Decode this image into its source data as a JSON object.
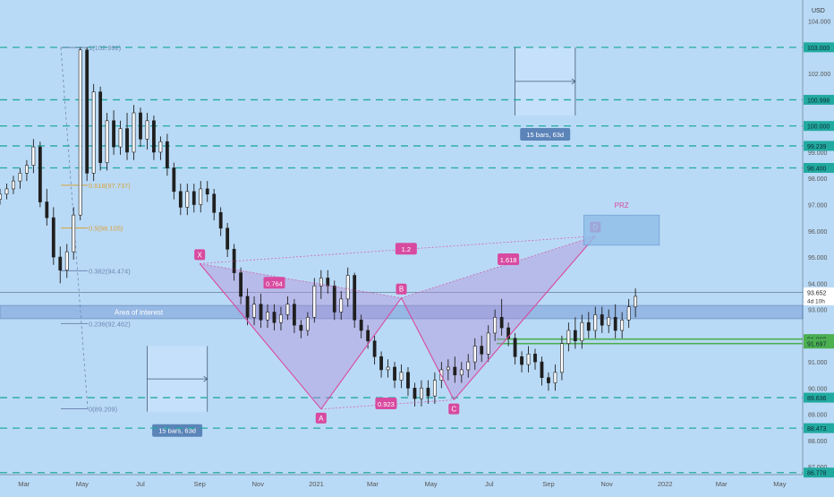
{
  "chart_data": {
    "type": "candlestick",
    "currency": "USD",
    "y_axis": {
      "ticks": [
        104.0,
        103.0,
        102.0,
        101.0,
        100.0,
        99.0,
        98.0,
        97.0,
        96.0,
        95.0,
        94.0,
        93.0,
        92.0,
        91.0,
        90.0,
        89.0,
        88.0,
        87.0
      ],
      "range": [
        86.7,
        104.6
      ]
    },
    "x_axis": {
      "labels": [
        "Mar",
        "May",
        "Jul",
        "Sep",
        "Nov",
        "2021",
        "Mar",
        "May",
        "Jul",
        "Sep",
        "Nov",
        "2022",
        "Mar",
        "May"
      ],
      "range": [
        "2020-02-05",
        "2022-05-25"
      ]
    },
    "price_levels": [
      {
        "value": 103.0,
        "label": "103.000"
      },
      {
        "value": 100.998,
        "label": "100.998"
      },
      {
        "value": 100.0,
        "label": "100.000"
      },
      {
        "value": 99.239,
        "label": "99.239"
      },
      {
        "value": 98.4,
        "label": "98.400"
      },
      {
        "value": 89.636,
        "label": "89.636"
      },
      {
        "value": 88.473,
        "label": "88.473"
      },
      {
        "value": 86.778,
        "label": "86.778"
      }
    ],
    "green_levels": [
      {
        "value": 91.869,
        "label": "91.869"
      },
      {
        "value": 91.697,
        "label": "91.697"
      }
    ],
    "current_price": {
      "value": 93.652,
      "label": "93.652",
      "countdown": "4d 10h"
    },
    "fibonacci": [
      {
        "ratio": "1",
        "value": 102.992,
        "label": "1(102.992)"
      },
      {
        "ratio": "0.618",
        "value": 97.737,
        "label": "0.618(97.737)"
      },
      {
        "ratio": "0.5",
        "value": 96.105,
        "label": "0.5(96.105)"
      },
      {
        "ratio": "0.382",
        "value": 94.474,
        "label": "0.382(94.474)"
      },
      {
        "ratio": "0.236",
        "value": 92.462,
        "label": "0.236(92.462)"
      },
      {
        "ratio": "0",
        "value": 89.209,
        "label": "0(89.209)"
      }
    ],
    "area_of_interest": {
      "label": "Area of interest",
      "from": 93.15,
      "to": 92.65
    },
    "harmonic_pattern": {
      "points": [
        {
          "label": "X",
          "date": "2020-09-01",
          "value": 94.75
        },
        {
          "label": "A",
          "date": "2021-01-06",
          "value": 89.2
        },
        {
          "label": "B",
          "date": "2021-03-31",
          "value": 93.44
        },
        {
          "label": "C",
          "date": "2021-05-25",
          "value": 89.55
        },
        {
          "label": "D",
          "date": "2021-10-20",
          "value": 95.8
        }
      ],
      "ratios": [
        {
          "label": "0.764",
          "date": "2020-11-18",
          "value": 94.0
        },
        {
          "label": "1.2",
          "date": "2021-04-05",
          "value": 95.3
        },
        {
          "label": "0.923",
          "date": "2021-03-15",
          "value": 89.4
        },
        {
          "label": "1.618",
          "date": "2021-07-21",
          "value": 94.9
        }
      ],
      "prz": {
        "label": "PRZ",
        "date_from": "2021-10-08",
        "date_to": "2021-12-26",
        "value_from": 96.6,
        "value_to": 95.45
      }
    },
    "time_ranges": [
      {
        "label": "15 bars, 63d",
        "date_from": "2020-07-08",
        "date_to": "2020-09-09",
        "value_from": 91.6,
        "value_to": 89.1
      },
      {
        "label": "15 bars, 63d",
        "date_from": "2021-07-28",
        "date_to": "2021-09-29",
        "value_from": 103.0,
        "value_to": 100.4
      }
    ],
    "weekly_ohlc": [
      [
        "2020-02-05",
        97.2,
        97.6,
        97.0,
        97.4
      ],
      [
        "2020-02-12",
        97.4,
        97.8,
        97.2,
        97.6
      ],
      [
        "2020-02-19",
        97.6,
        98.1,
        97.4,
        97.9
      ],
      [
        "2020-02-26",
        97.9,
        98.4,
        97.6,
        98.2
      ],
      [
        "2020-03-04",
        98.2,
        98.7,
        97.9,
        98.5
      ],
      [
        "2020-03-11",
        98.5,
        99.5,
        98.2,
        99.2
      ],
      [
        "2020-03-18",
        99.2,
        99.4,
        96.9,
        97.1
      ],
      [
        "2020-03-25",
        97.1,
        97.6,
        96.2,
        96.5
      ],
      [
        "2020-04-01",
        96.5,
        96.9,
        94.7,
        95.0
      ],
      [
        "2020-04-08",
        95.0,
        95.4,
        94.0,
        94.5
      ],
      [
        "2020-04-15",
        94.5,
        95.5,
        94.2,
        95.2
      ],
      [
        "2020-04-22",
        95.2,
        96.9,
        94.9,
        96.6
      ],
      [
        "2020-04-29",
        96.6,
        103.0,
        96.4,
        102.9
      ],
      [
        "2020-05-06",
        102.9,
        103.0,
        97.9,
        98.2
      ],
      [
        "2020-05-13",
        98.2,
        101.6,
        97.9,
        101.3
      ],
      [
        "2020-05-20",
        101.3,
        101.5,
        98.3,
        98.6
      ],
      [
        "2020-05-27",
        98.6,
        100.5,
        98.3,
        100.2
      ],
      [
        "2020-06-03",
        100.2,
        100.6,
        98.9,
        99.2
      ],
      [
        "2020-06-10",
        99.2,
        100.2,
        98.9,
        99.9
      ],
      [
        "2020-06-17",
        99.9,
        100.5,
        98.7,
        99.0
      ],
      [
        "2020-06-24",
        99.0,
        100.8,
        98.7,
        100.5
      ],
      [
        "2020-07-01",
        100.5,
        100.7,
        99.2,
        99.5
      ],
      [
        "2020-07-08",
        99.5,
        100.5,
        99.1,
        100.2
      ],
      [
        "2020-07-15",
        100.2,
        100.4,
        98.7,
        99.0
      ],
      [
        "2020-07-22",
        99.0,
        99.6,
        98.7,
        99.4
      ],
      [
        "2020-07-29",
        99.4,
        99.7,
        98.1,
        98.4
      ],
      [
        "2020-08-05",
        98.4,
        98.6,
        97.2,
        97.5
      ],
      [
        "2020-08-12",
        97.5,
        97.8,
        96.6,
        96.9
      ],
      [
        "2020-08-19",
        96.9,
        97.8,
        96.6,
        97.5
      ],
      [
        "2020-08-26",
        97.5,
        97.8,
        96.7,
        97.0
      ],
      [
        "2020-09-02",
        97.0,
        97.9,
        96.7,
        97.6
      ],
      [
        "2020-09-09",
        97.6,
        97.9,
        97.1,
        97.4
      ],
      [
        "2020-09-16",
        97.4,
        97.6,
        96.4,
        96.7
      ],
      [
        "2020-09-23",
        96.7,
        96.9,
        95.8,
        96.1
      ],
      [
        "2020-09-30",
        96.1,
        96.3,
        95.0,
        95.3
      ],
      [
        "2020-10-07",
        95.3,
        95.5,
        94.1,
        94.4
      ],
      [
        "2020-10-14",
        94.4,
        94.6,
        93.2,
        93.5
      ],
      [
        "2020-10-21",
        93.5,
        93.8,
        92.4,
        92.7
      ],
      [
        "2020-10-28",
        92.7,
        93.5,
        92.4,
        93.2
      ],
      [
        "2020-11-04",
        93.2,
        93.6,
        92.3,
        92.6
      ],
      [
        "2020-11-11",
        92.6,
        93.2,
        92.3,
        92.9
      ],
      [
        "2020-11-18",
        92.9,
        93.2,
        92.2,
        92.5
      ],
      [
        "2020-11-25",
        92.5,
        93.1,
        92.2,
        92.8
      ],
      [
        "2020-12-02",
        92.8,
        93.5,
        92.6,
        93.2
      ],
      [
        "2020-12-09",
        93.2,
        93.4,
        92.1,
        92.4
      ],
      [
        "2020-12-16",
        92.4,
        92.6,
        91.9,
        92.2
      ],
      [
        "2020-12-23",
        92.2,
        92.9,
        92.0,
        92.7
      ],
      [
        "2020-12-30",
        92.7,
        94.2,
        92.5,
        93.9
      ],
      [
        "2021-01-06",
        93.9,
        94.5,
        93.4,
        94.2
      ],
      [
        "2021-01-13",
        94.2,
        94.5,
        93.6,
        93.9
      ],
      [
        "2021-01-20",
        93.9,
        94.1,
        92.6,
        92.9
      ],
      [
        "2021-01-27",
        92.9,
        93.7,
        92.6,
        93.4
      ],
      [
        "2021-02-03",
        93.4,
        94.6,
        93.1,
        94.3
      ],
      [
        "2021-02-10",
        94.3,
        94.4,
        92.3,
        92.6
      ],
      [
        "2021-02-17",
        92.6,
        92.8,
        91.9,
        92.2
      ],
      [
        "2021-02-24",
        92.2,
        92.4,
        91.5,
        91.8
      ],
      [
        "2021-03-03",
        91.8,
        92.0,
        90.9,
        91.2
      ],
      [
        "2021-03-10",
        91.2,
        91.4,
        90.4,
        90.7
      ],
      [
        "2021-03-17",
        90.7,
        91.1,
        90.4,
        90.8
      ],
      [
        "2021-03-24",
        90.8,
        91.0,
        90.0,
        90.3
      ],
      [
        "2021-03-31",
        90.3,
        90.9,
        90.0,
        90.6
      ],
      [
        "2021-04-07",
        90.6,
        90.8,
        89.7,
        90.0
      ],
      [
        "2021-04-14",
        90.0,
        90.2,
        89.3,
        89.6
      ],
      [
        "2021-04-21",
        89.6,
        90.3,
        89.3,
        90.0
      ],
      [
        "2021-04-28",
        90.0,
        90.3,
        89.4,
        89.7
      ],
      [
        "2021-05-05",
        89.7,
        90.6,
        89.4,
        90.3
      ],
      [
        "2021-05-12",
        90.3,
        91.0,
        90.0,
        90.7
      ],
      [
        "2021-05-19",
        90.7,
        91.1,
        90.3,
        90.8
      ],
      [
        "2021-05-26",
        90.8,
        91.2,
        90.2,
        90.5
      ],
      [
        "2021-06-02",
        90.5,
        91.0,
        90.2,
        90.7
      ],
      [
        "2021-06-09",
        90.7,
        91.3,
        90.4,
        91.0
      ],
      [
        "2021-06-16",
        91.0,
        91.9,
        90.7,
        91.6
      ],
      [
        "2021-06-23",
        91.6,
        92.0,
        91.0,
        91.3
      ],
      [
        "2021-06-30",
        91.3,
        92.4,
        91.0,
        92.1
      ],
      [
        "2021-07-07",
        92.1,
        93.0,
        91.8,
        92.7
      ],
      [
        "2021-07-14",
        92.7,
        93.4,
        92.0,
        92.3
      ],
      [
        "2021-07-21",
        92.3,
        92.5,
        91.6,
        91.9
      ],
      [
        "2021-07-28",
        91.9,
        92.1,
        90.9,
        91.2
      ],
      [
        "2021-08-04",
        91.2,
        91.4,
        90.6,
        90.9
      ],
      [
        "2021-08-11",
        90.9,
        91.6,
        90.6,
        91.3
      ],
      [
        "2021-08-18",
        91.3,
        91.5,
        90.7,
        91.0
      ],
      [
        "2021-08-25",
        91.0,
        91.2,
        90.1,
        90.4
      ],
      [
        "2021-09-01",
        90.4,
        90.6,
        89.9,
        90.2
      ],
      [
        "2021-09-08",
        90.2,
        90.9,
        89.9,
        90.6
      ],
      [
        "2021-09-15",
        90.6,
        92.0,
        90.3,
        91.7
      ],
      [
        "2021-09-22",
        91.7,
        92.5,
        91.4,
        92.2
      ],
      [
        "2021-09-29",
        92.2,
        92.7,
        91.5,
        91.8
      ],
      [
        "2021-10-06",
        91.8,
        92.8,
        91.5,
        92.5
      ],
      [
        "2021-10-13",
        92.5,
        92.9,
        91.9,
        92.2
      ],
      [
        "2021-10-20",
        92.2,
        93.1,
        91.9,
        92.8
      ],
      [
        "2021-10-27",
        92.8,
        93.1,
        92.1,
        92.4
      ],
      [
        "2021-11-03",
        92.4,
        93.0,
        92.1,
        92.7
      ],
      [
        "2021-11-10",
        92.7,
        93.2,
        91.9,
        92.2
      ],
      [
        "2021-11-17",
        92.2,
        92.9,
        91.9,
        92.6
      ],
      [
        "2021-11-24",
        92.6,
        93.4,
        92.3,
        93.1
      ],
      [
        "2021-12-01",
        93.1,
        93.8,
        92.7,
        93.5
      ]
    ],
    "colors": {
      "background": "#b9daf6",
      "candle": "#1f1f1f",
      "pattern": "#d84aa0",
      "fib": "#6f87b4",
      "level_dashed": "#22aaa0",
      "green_level": "#4caf50",
      "range_box": "#cfe6ff",
      "label_box": "#5b84b8",
      "prz_box": "#8fbde8"
    }
  }
}
